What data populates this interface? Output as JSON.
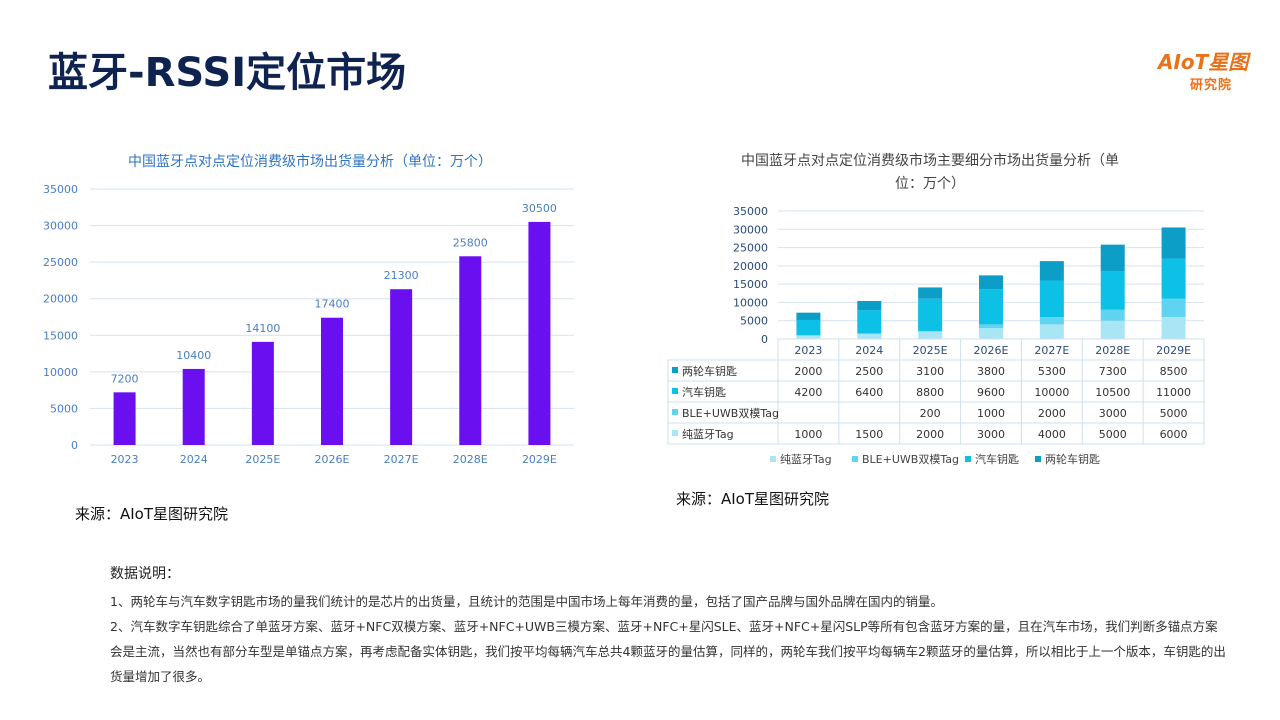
{
  "page": {
    "title": "蓝牙-RSSI定位市场",
    "logo_main": "AIoT星图",
    "logo_sub": "研究院",
    "source_left": "来源：AIoT星图研究院",
    "source_right": "来源：AIoT星图研究院"
  },
  "notes": {
    "heading": "数据说明：",
    "line1": "1、两轮车与汽车数字钥匙市场的量我们统计的是芯片的出货量，且统计的范围是中国市场上每年消费的量，包括了国产品牌与国外品牌在国内的销量。",
    "line2": "2、汽车数字车钥匙综合了单蓝牙方案、蓝牙+NFC双模方案、蓝牙+NFC+UWB三模方案、蓝牙+NFC+星闪SLE、蓝牙+NFC+星闪SLP等所有包含蓝牙方案的量，且在汽车市场，我们判断多锚点方案会是主流，当然也有部分车型是单锚点方案，再考虑配备实体钥匙，我们按平均每辆汽车总共4颗蓝牙的量估算，同样的，两轮车我们按平均每辆车2颗蓝牙的量估算，所以相比于上一个版本，车钥匙的出货量增加了很多。"
  },
  "colors": {
    "bar_left": "#6a0ff0",
    "title_left": "#2e74c5",
    "grid": "#d6e2ef",
    "axis_text": "#4a7fc1"
  },
  "chart_data": [
    {
      "type": "bar",
      "title": "中国蓝牙点对点定位消费级市场出货量分析（单位：万个）",
      "categories": [
        "2023",
        "2024",
        "2025E",
        "2026E",
        "2027E",
        "2028E",
        "2029E"
      ],
      "values": [
        7200,
        10400,
        14100,
        17400,
        21300,
        25800,
        30500
      ],
      "ylim": [
        0,
        35000
      ],
      "yticks": [
        0,
        5000,
        10000,
        15000,
        20000,
        25000,
        30000,
        35000
      ],
      "grid": true,
      "legend": "none"
    },
    {
      "type": "bar",
      "stacked": true,
      "title_line1": "中国蓝牙点对点定位消费级市场主要细分市场出货量分析（单",
      "title_line2": "位：万个）",
      "categories": [
        "2023",
        "2024",
        "2025E",
        "2026E",
        "2027E",
        "2028E",
        "2029E"
      ],
      "ylim": [
        0,
        35000
      ],
      "yticks": [
        0,
        5000,
        10000,
        15000,
        20000,
        25000,
        30000,
        35000
      ],
      "grid": true,
      "legend": "bottom",
      "series": [
        {
          "name": "纯蓝牙Tag",
          "color": "#a8e6f5",
          "values": [
            1000,
            1500,
            2000,
            3000,
            4000,
            5000,
            6000
          ],
          "labels": [
            "1000",
            "1500",
            "2000",
            "3000",
            "4000",
            "5000",
            "6000"
          ]
        },
        {
          "name": "BLE+UWB双模Tag",
          "color": "#5fd3f0",
          "values": [
            0,
            0,
            200,
            1000,
            2000,
            3000,
            5000
          ],
          "labels": [
            "",
            "",
            "200",
            "1000",
            "2000",
            "3000",
            "5000"
          ]
        },
        {
          "name": "汽车钥匙",
          "color": "#0cc0e6",
          "values": [
            4200,
            6400,
            8800,
            9600,
            10000,
            10500,
            11000
          ],
          "labels": [
            "4200",
            "6400",
            "8800",
            "9600",
            "10000",
            "10500",
            "11000"
          ]
        },
        {
          "name": "两轮车钥匙",
          "color": "#0d9ec7",
          "values": [
            2000,
            2500,
            3100,
            3800,
            5300,
            7300,
            8500
          ],
          "labels": [
            "2000",
            "2500",
            "3100",
            "3800",
            "5300",
            "7300",
            "8500"
          ]
        }
      ]
    }
  ]
}
